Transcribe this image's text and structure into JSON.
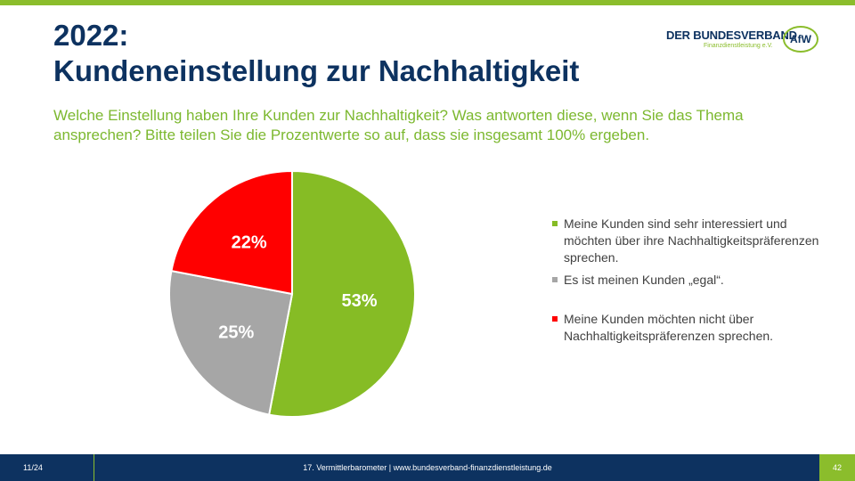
{
  "header": {
    "title_line1": "2022:",
    "title_line2": "Kundeneinstellung zur Nachhaltigkeit",
    "subtitle": "Welche Einstellung haben Ihre Kunden zur Nachhaltigkeit? Was antworten diese, wenn Sie das Thema ansprechen? Bitte teilen Sie die Prozentwerte so auf, dass sie insgesamt 100% ergeben."
  },
  "logo": {
    "main": "DER BUNDESVERBAND",
    "sub": "Finanzdienstleistung e.V.",
    "badge": "AfW"
  },
  "chart_data": {
    "type": "pie",
    "categories": [
      "Meine Kunden sind sehr interessiert und möchten über ihre Nachhaltigkeitspräferenzen sprechen.",
      "Es ist meinen Kunden „egal“.",
      "Meine Kunden möchten nicht über Nachhaltigkeitspräferenzen sprechen."
    ],
    "values": [
      53,
      25,
      22
    ],
    "labels": [
      "53%",
      "25%",
      "22%"
    ],
    "colors": [
      "#86bc25",
      "#a6a6a6",
      "#ff0000"
    ],
    "legend_position": "right"
  },
  "footer": {
    "page": "11/24",
    "center": "17. Vermittlerbarometer | www.bundesverband-finanzdienstleistung.de",
    "slide_number": "42"
  },
  "colors": {
    "navy": "#0d3260",
    "green": "#8bbd2c"
  }
}
